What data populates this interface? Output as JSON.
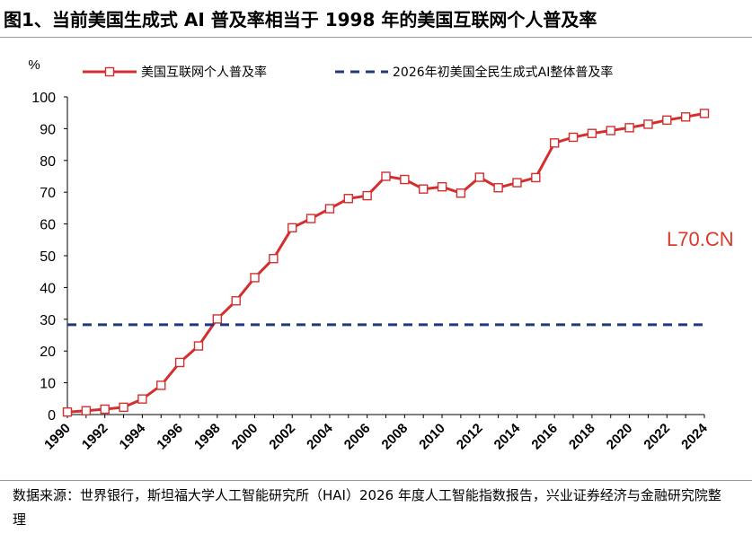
{
  "figure": {
    "title": "图1、当前美国生成式 AI 普及率相当于 1998 年的美国互联网个人普及率",
    "source_note": "数据来源：世界银行，斯坦福大学人工智能研究所（HAI）2026 年度人工智能指数报告，兴业证券经济与金融研究院整理",
    "watermark": "L70.CN"
  },
  "colors": {
    "internet_line": "#d32f2f",
    "genai_line": "#1f3a7a",
    "marker_fill": "#ffffff",
    "watermark": "#d83a2a"
  },
  "chart_data": {
    "type": "line",
    "ylabel": "%",
    "xlabel": "",
    "ylim": [
      0,
      100
    ],
    "yticks": [
      0,
      10,
      20,
      30,
      40,
      50,
      60,
      70,
      80,
      90,
      100
    ],
    "xticks": [
      "1990",
      "1992",
      "1994",
      "1996",
      "1998",
      "2000",
      "2002",
      "2004",
      "2006",
      "2008",
      "2010",
      "2012",
      "2014",
      "2016",
      "2018",
      "2020",
      "2022",
      "2024"
    ],
    "x": [
      1990,
      1991,
      1992,
      1993,
      1994,
      1995,
      1996,
      1997,
      1998,
      1999,
      2000,
      2001,
      2002,
      2003,
      2004,
      2005,
      2006,
      2007,
      2008,
      2009,
      2010,
      2011,
      2012,
      2013,
      2014,
      2015,
      2016,
      2017,
      2018,
      2019,
      2020,
      2021,
      2022,
      2023,
      2024
    ],
    "legend_position": "top",
    "grid": false,
    "series": [
      {
        "name": "美国互联网个人普及率",
        "style": "line-with-square-markers",
        "values": [
          0.8,
          1.2,
          1.7,
          2.3,
          4.9,
          9.2,
          16.4,
          21.6,
          30.1,
          35.8,
          43.1,
          49.1,
          58.8,
          61.7,
          64.8,
          68.0,
          68.9,
          75.0,
          74.0,
          71.0,
          71.7,
          69.7,
          74.7,
          71.4,
          73.0,
          74.6,
          85.5,
          87.3,
          88.5,
          89.4,
          90.3,
          91.4,
          92.7,
          93.7,
          94.8
        ]
      },
      {
        "name": "2026年初美国全民生成式AI整体普及率",
        "style": "dashed",
        "constant": 28.3
      }
    ]
  }
}
